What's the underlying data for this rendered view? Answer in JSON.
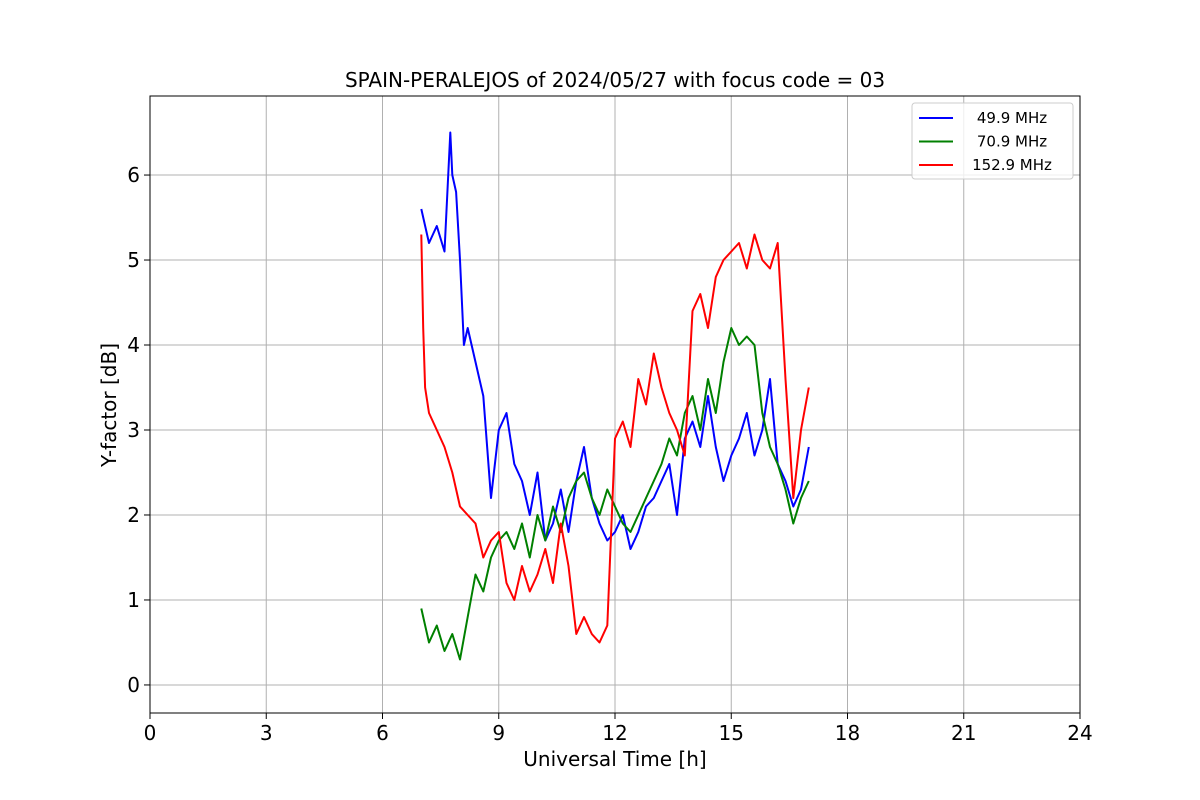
{
  "chart_data": {
    "type": "line",
    "title": "SPAIN-PERALEJOS of 2024/05/27 with focus code = 03",
    "xlabel": "Universal Time [h]",
    "ylabel": "Y-factor [dB]",
    "xlim": [
      0,
      24
    ],
    "ylim": [
      -0.33,
      6.93
    ],
    "x_ticks": [
      0,
      3,
      6,
      9,
      12,
      15,
      18,
      21,
      24
    ],
    "y_ticks": [
      0,
      1,
      2,
      3,
      4,
      5,
      6
    ],
    "grid": true,
    "legend_position": "top-right",
    "series": [
      {
        "name": "49.9 MHz",
        "color": "#0000ff",
        "x": [
          7.0,
          7.2,
          7.4,
          7.6,
          7.75,
          7.8,
          7.9,
          8.0,
          8.1,
          8.2,
          8.4,
          8.6,
          8.8,
          9.0,
          9.2,
          9.4,
          9.6,
          9.8,
          10.0,
          10.2,
          10.4,
          10.6,
          10.8,
          11.0,
          11.2,
          11.4,
          11.6,
          11.8,
          12.0,
          12.2,
          12.4,
          12.6,
          12.8,
          13.0,
          13.2,
          13.4,
          13.6,
          13.8,
          14.0,
          14.2,
          14.4,
          14.6,
          14.8,
          15.0,
          15.2,
          15.4,
          15.6,
          15.8,
          16.0,
          16.2,
          16.4,
          16.6,
          16.8,
          17.0
        ],
        "y": [
          5.6,
          5.2,
          5.4,
          5.1,
          6.5,
          6.0,
          5.8,
          5.0,
          4.0,
          4.2,
          3.8,
          3.4,
          2.2,
          3.0,
          3.2,
          2.6,
          2.4,
          2.0,
          2.5,
          1.7,
          1.9,
          2.3,
          1.8,
          2.4,
          2.8,
          2.2,
          1.9,
          1.7,
          1.8,
          2.0,
          1.6,
          1.8,
          2.1,
          2.2,
          2.4,
          2.6,
          2.0,
          2.9,
          3.1,
          2.8,
          3.4,
          2.8,
          2.4,
          2.7,
          2.9,
          3.2,
          2.7,
          3.0,
          3.6,
          2.6,
          2.4,
          2.1,
          2.3,
          2.8
        ]
      },
      {
        "name": "70.9 MHz",
        "color": "#008000",
        "x": [
          7.0,
          7.2,
          7.4,
          7.6,
          7.8,
          8.0,
          8.2,
          8.4,
          8.6,
          8.8,
          9.0,
          9.2,
          9.4,
          9.6,
          9.8,
          10.0,
          10.2,
          10.4,
          10.6,
          10.8,
          11.0,
          11.2,
          11.4,
          11.6,
          11.8,
          12.0,
          12.2,
          12.4,
          12.6,
          12.8,
          13.0,
          13.2,
          13.4,
          13.6,
          13.8,
          14.0,
          14.2,
          14.4,
          14.6,
          14.8,
          15.0,
          15.2,
          15.4,
          15.6,
          15.8,
          16.0,
          16.2,
          16.4,
          16.6,
          16.8,
          17.0
        ],
        "y": [
          0.9,
          0.5,
          0.7,
          0.4,
          0.6,
          0.3,
          0.8,
          1.3,
          1.1,
          1.5,
          1.7,
          1.8,
          1.6,
          1.9,
          1.5,
          2.0,
          1.7,
          2.1,
          1.8,
          2.2,
          2.4,
          2.5,
          2.2,
          2.0,
          2.3,
          2.1,
          1.9,
          1.8,
          2.0,
          2.2,
          2.4,
          2.6,
          2.9,
          2.7,
          3.2,
          3.4,
          3.0,
          3.6,
          3.2,
          3.8,
          4.2,
          4.0,
          4.1,
          4.0,
          3.2,
          2.8,
          2.6,
          2.3,
          1.9,
          2.2,
          2.4
        ]
      },
      {
        "name": "152.9 MHz",
        "color": "#ff0000",
        "x": [
          7.0,
          7.05,
          7.1,
          7.2,
          7.4,
          7.6,
          7.8,
          8.0,
          8.2,
          8.4,
          8.6,
          8.8,
          9.0,
          9.2,
          9.4,
          9.6,
          9.8,
          10.0,
          10.2,
          10.4,
          10.6,
          10.8,
          11.0,
          11.2,
          11.4,
          11.6,
          11.8,
          12.0,
          12.2,
          12.4,
          12.6,
          12.8,
          13.0,
          13.2,
          13.4,
          13.6,
          13.8,
          14.0,
          14.2,
          14.4,
          14.6,
          14.8,
          15.0,
          15.2,
          15.4,
          15.6,
          15.8,
          16.0,
          16.2,
          16.4,
          16.6,
          16.8,
          17.0
        ],
        "y": [
          5.3,
          4.2,
          3.5,
          3.2,
          3.0,
          2.8,
          2.5,
          2.1,
          2.0,
          1.9,
          1.5,
          1.7,
          1.8,
          1.2,
          1.0,
          1.4,
          1.1,
          1.3,
          1.6,
          1.2,
          1.9,
          1.4,
          0.6,
          0.8,
          0.6,
          0.5,
          0.7,
          2.9,
          3.1,
          2.8,
          3.6,
          3.3,
          3.9,
          3.5,
          3.2,
          3.0,
          2.7,
          4.4,
          4.6,
          4.2,
          4.8,
          5.0,
          5.1,
          5.2,
          4.9,
          5.3,
          5.0,
          4.9,
          5.2,
          3.6,
          2.2,
          3.0,
          3.5
        ]
      }
    ]
  }
}
